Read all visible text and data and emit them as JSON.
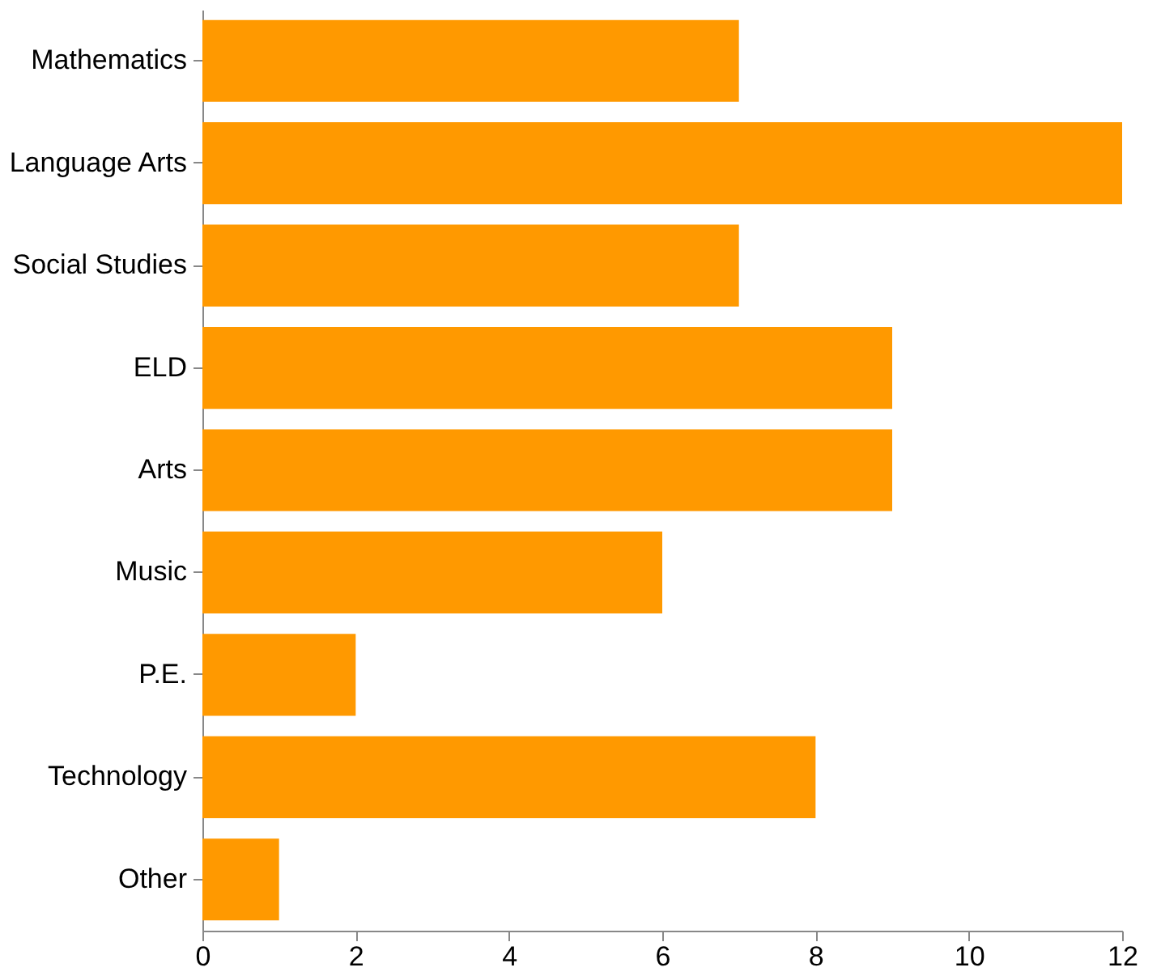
{
  "chart_data": {
    "type": "bar",
    "orientation": "horizontal",
    "categories": [
      "Mathematics",
      "Language Arts",
      "Social Studies",
      "ELD",
      "Arts",
      "Music",
      "P.E.",
      "Technology",
      "Other"
    ],
    "values": [
      7,
      12,
      7,
      9,
      9,
      6,
      2,
      8,
      1
    ],
    "color": "#ff9900",
    "xlim": [
      0,
      12
    ],
    "xticks": [
      0,
      2,
      4,
      6,
      8,
      10,
      12
    ],
    "grid": false
  }
}
